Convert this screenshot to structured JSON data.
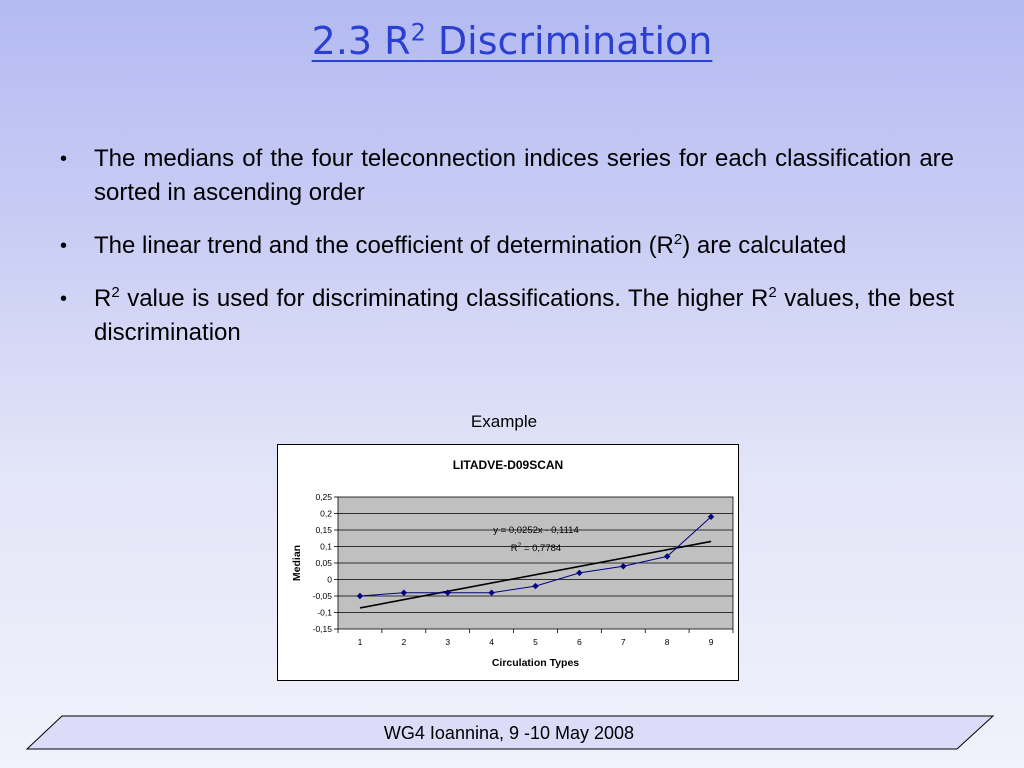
{
  "slide": {
    "title_main": "2.3  R",
    "title_sup": "2",
    "title_rest": " Discrimination"
  },
  "bullets": [
    {
      "text": "The medians of the four teleconnection indices series for each classification are sorted in ascending order"
    },
    {
      "text_a": "The linear trend and the coefficient of determination (R",
      "sup": "2",
      "text_b": ") are calculated"
    },
    {
      "text_a": "R",
      "sup": "2",
      "text_b": " value is used for discriminating classifications. The higher R",
      "sup2": "2",
      "text_c": " values, the best discrimination"
    }
  ],
  "example_label": "Example",
  "chart_data": {
    "type": "scatter",
    "title": "LITADVE-D09SCAN",
    "xlabel": "Circulation Types",
    "ylabel": "Median",
    "x": [
      1,
      2,
      3,
      4,
      5,
      6,
      7,
      8,
      9
    ],
    "y": [
      -0.05,
      -0.04,
      -0.04,
      -0.04,
      -0.02,
      0.02,
      0.04,
      0.07,
      0.19
    ],
    "ylim": [
      -0.15,
      0.25
    ],
    "yticks": [
      "-0,15",
      "-0,1",
      "-0,05",
      "0",
      "0,05",
      "0,1",
      "0,15",
      "0,2",
      "0,25"
    ],
    "xticks": [
      "1",
      "2",
      "3",
      "4",
      "5",
      "6",
      "7",
      "8",
      "9"
    ],
    "trendline": {
      "slope": 0.0252,
      "intercept": -0.1114
    },
    "equation_label": "y = 0,0252x - 0,1114",
    "r2_label_main": "R",
    "r2_label_sup": "2",
    "r2_label_rest": " = 0,7784",
    "grid": true,
    "plot_bg": "#c0c0c0",
    "series_color": "#000080",
    "trend_color": "#000000"
  },
  "footer": {
    "text": "WG4 Ioannina, 9 -10 May 2008"
  },
  "colors": {
    "title": "#2b3fd0",
    "footer_fill": "#dcdcf9"
  }
}
